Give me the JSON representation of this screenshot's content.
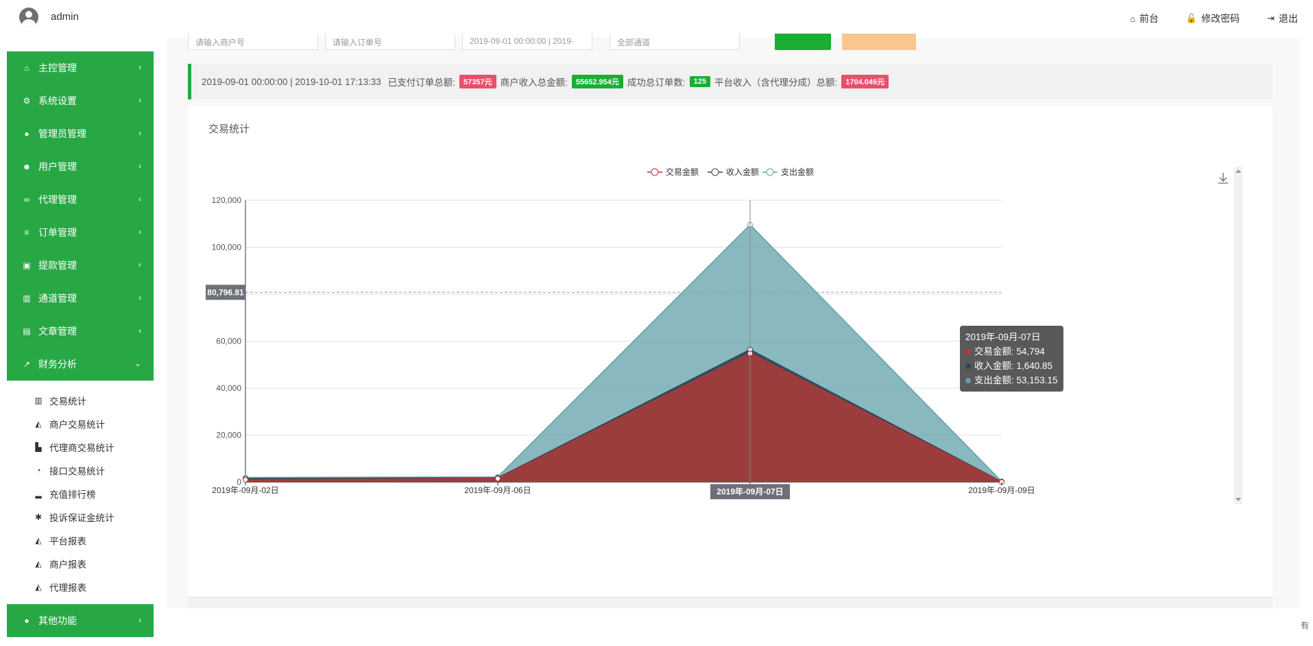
{
  "header": {
    "username": "admin",
    "links": [
      {
        "icon": "home-icon",
        "glyph": "⌂",
        "label": "前台"
      },
      {
        "icon": "lock-icon",
        "glyph": "🔓",
        "label": "修改密码"
      },
      {
        "icon": "logout-icon",
        "glyph": "⇥",
        "label": "退出"
      }
    ]
  },
  "sidebar": {
    "menu": [
      {
        "icon": "home-icon",
        "glyph": "⌂",
        "label": "主控管理"
      },
      {
        "icon": "gears-icon",
        "glyph": "⚙",
        "label": "系统设置"
      },
      {
        "icon": "user-circle-icon",
        "glyph": "●",
        "label": "管理员管理"
      },
      {
        "icon": "users-icon",
        "glyph": "☻",
        "label": "用户管理"
      },
      {
        "icon": "handshake-icon",
        "glyph": "∞",
        "label": "代理管理"
      },
      {
        "icon": "list-icon",
        "glyph": "≡",
        "label": "订单管理"
      },
      {
        "icon": "lock-icon",
        "glyph": "▣",
        "label": "提款管理"
      },
      {
        "icon": "bank-icon",
        "glyph": "▥",
        "label": "通道管理"
      },
      {
        "icon": "book-icon",
        "glyph": "▤",
        "label": "文章管理"
      },
      {
        "icon": "line-chart-icon",
        "glyph": "↗",
        "label": "财务分析"
      }
    ],
    "chevron": "‹",
    "chevron_open": "⌄",
    "submenu": [
      {
        "icon": "bar-chart-icon",
        "glyph": "▥",
        "label": "交易统计"
      },
      {
        "icon": "area-chart-icon",
        "glyph": "◭",
        "label": "商户交易统计"
      },
      {
        "icon": "industry-icon",
        "glyph": "▙",
        "label": "代理商交易统计"
      },
      {
        "icon": "pie-chart-icon",
        "glyph": "◔",
        "label": "接口交易统计"
      },
      {
        "icon": "signal-icon",
        "glyph": "▂",
        "label": "充值排行榜"
      },
      {
        "icon": "asterisk-icon",
        "glyph": "✱",
        "label": "投诉保证金统计"
      },
      {
        "icon": "area-chart-icon",
        "glyph": "◭",
        "label": "平台报表"
      },
      {
        "icon": "area-chart-icon",
        "glyph": "◭",
        "label": "商户报表"
      },
      {
        "icon": "area-chart-icon",
        "glyph": "◭",
        "label": "代理报表"
      }
    ],
    "other": {
      "icon": "user-circle-icon",
      "glyph": "●",
      "label": "其他功能"
    }
  },
  "filters": {
    "merchant_placeholder": "请输入商户号",
    "order_placeholder": "请输入订单号",
    "date_range": "2019-09-01 00:00:00 | 2019-",
    "channel": "全部通道"
  },
  "summary": {
    "range": "2019-09-01 00:00:00 | 2019-10-01 17:13:33",
    "paid_label": "已支付订单总额:",
    "paid_value": "57357元",
    "merchant_income_label": "商户收入总金额:",
    "merchant_income_value": "55652.954元",
    "success_orders_label": "成功总订单数:",
    "success_orders_value": "125",
    "platform_income_label": "平台收入（含代理分成）总额:",
    "platform_income_value": "1704.046元"
  },
  "panel": {
    "title": "交易统计"
  },
  "colors": {
    "trade": "#c23531",
    "income": "#2f4554",
    "expense": "#61a0a8",
    "green": "#27a844"
  },
  "chart_data": {
    "type": "area",
    "x": [
      "2019年-09月-02日",
      "2019年-09月-06日",
      "2019年-09月-07日",
      "2019年-09月-09日"
    ],
    "series": [
      {
        "name": "交易金额",
        "values": [
          1000,
          1500,
          54794,
          0
        ]
      },
      {
        "name": "收入金额",
        "values": [
          1500,
          1800,
          56434.85,
          200
        ]
      },
      {
        "name": "支出金额",
        "values": [
          2000,
          2200,
          109587.15,
          300
        ]
      }
    ],
    "ylim": [
      0,
      120000
    ],
    "yticks": [
      "0",
      "20,000",
      "40,000",
      "60,000",
      "80,000",
      "100,000",
      "120,000"
    ],
    "grid": true,
    "legend": "top-center",
    "pointer_y_label": "80,796.81",
    "pointer_y_value": 80796.81,
    "pointer_x_label": "2019年-09月-07日",
    "tooltip": {
      "title": "2019年-09月-07日",
      "rows": [
        {
          "label": "交易金额: 54,794"
        },
        {
          "label": "收入金额: 1,640.85"
        },
        {
          "label": "支出金额: 53,153.15"
        }
      ]
    }
  },
  "corner": "有"
}
